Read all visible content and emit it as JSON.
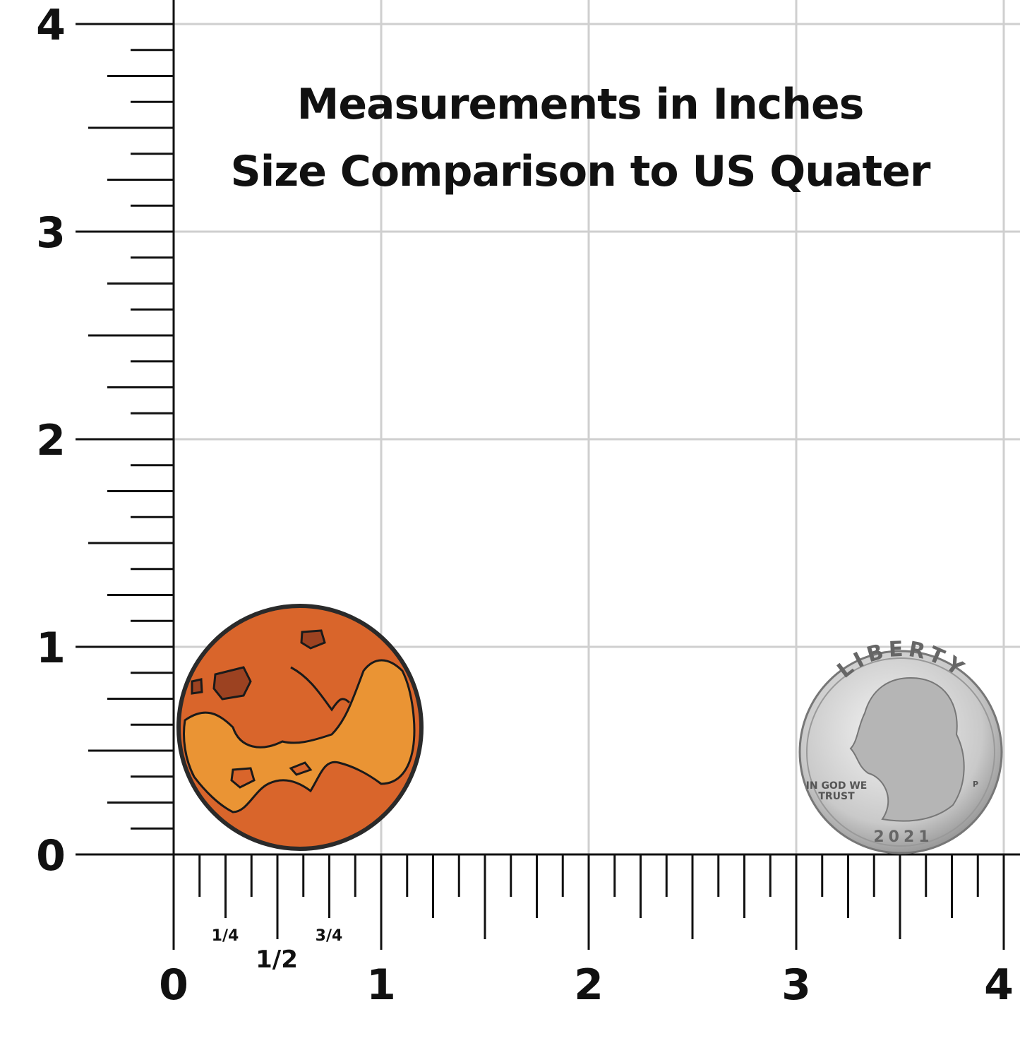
{
  "title": {
    "line1": "Measurements in Inches",
    "line2": "Size Comparison to US Quater"
  },
  "y_ruler": {
    "labels": [
      "0",
      "1",
      "2",
      "3",
      "4"
    ]
  },
  "x_ruler": {
    "labels": [
      "0",
      "1",
      "2",
      "3",
      "4"
    ],
    "fractions": [
      "1/4",
      "1/2",
      "3/4"
    ]
  },
  "coin": {
    "motto_top": "LIBERTY",
    "motto_left_1": "IN GOD WE",
    "motto_left_2": "TRUST",
    "year": "2021",
    "mint": "P"
  }
}
